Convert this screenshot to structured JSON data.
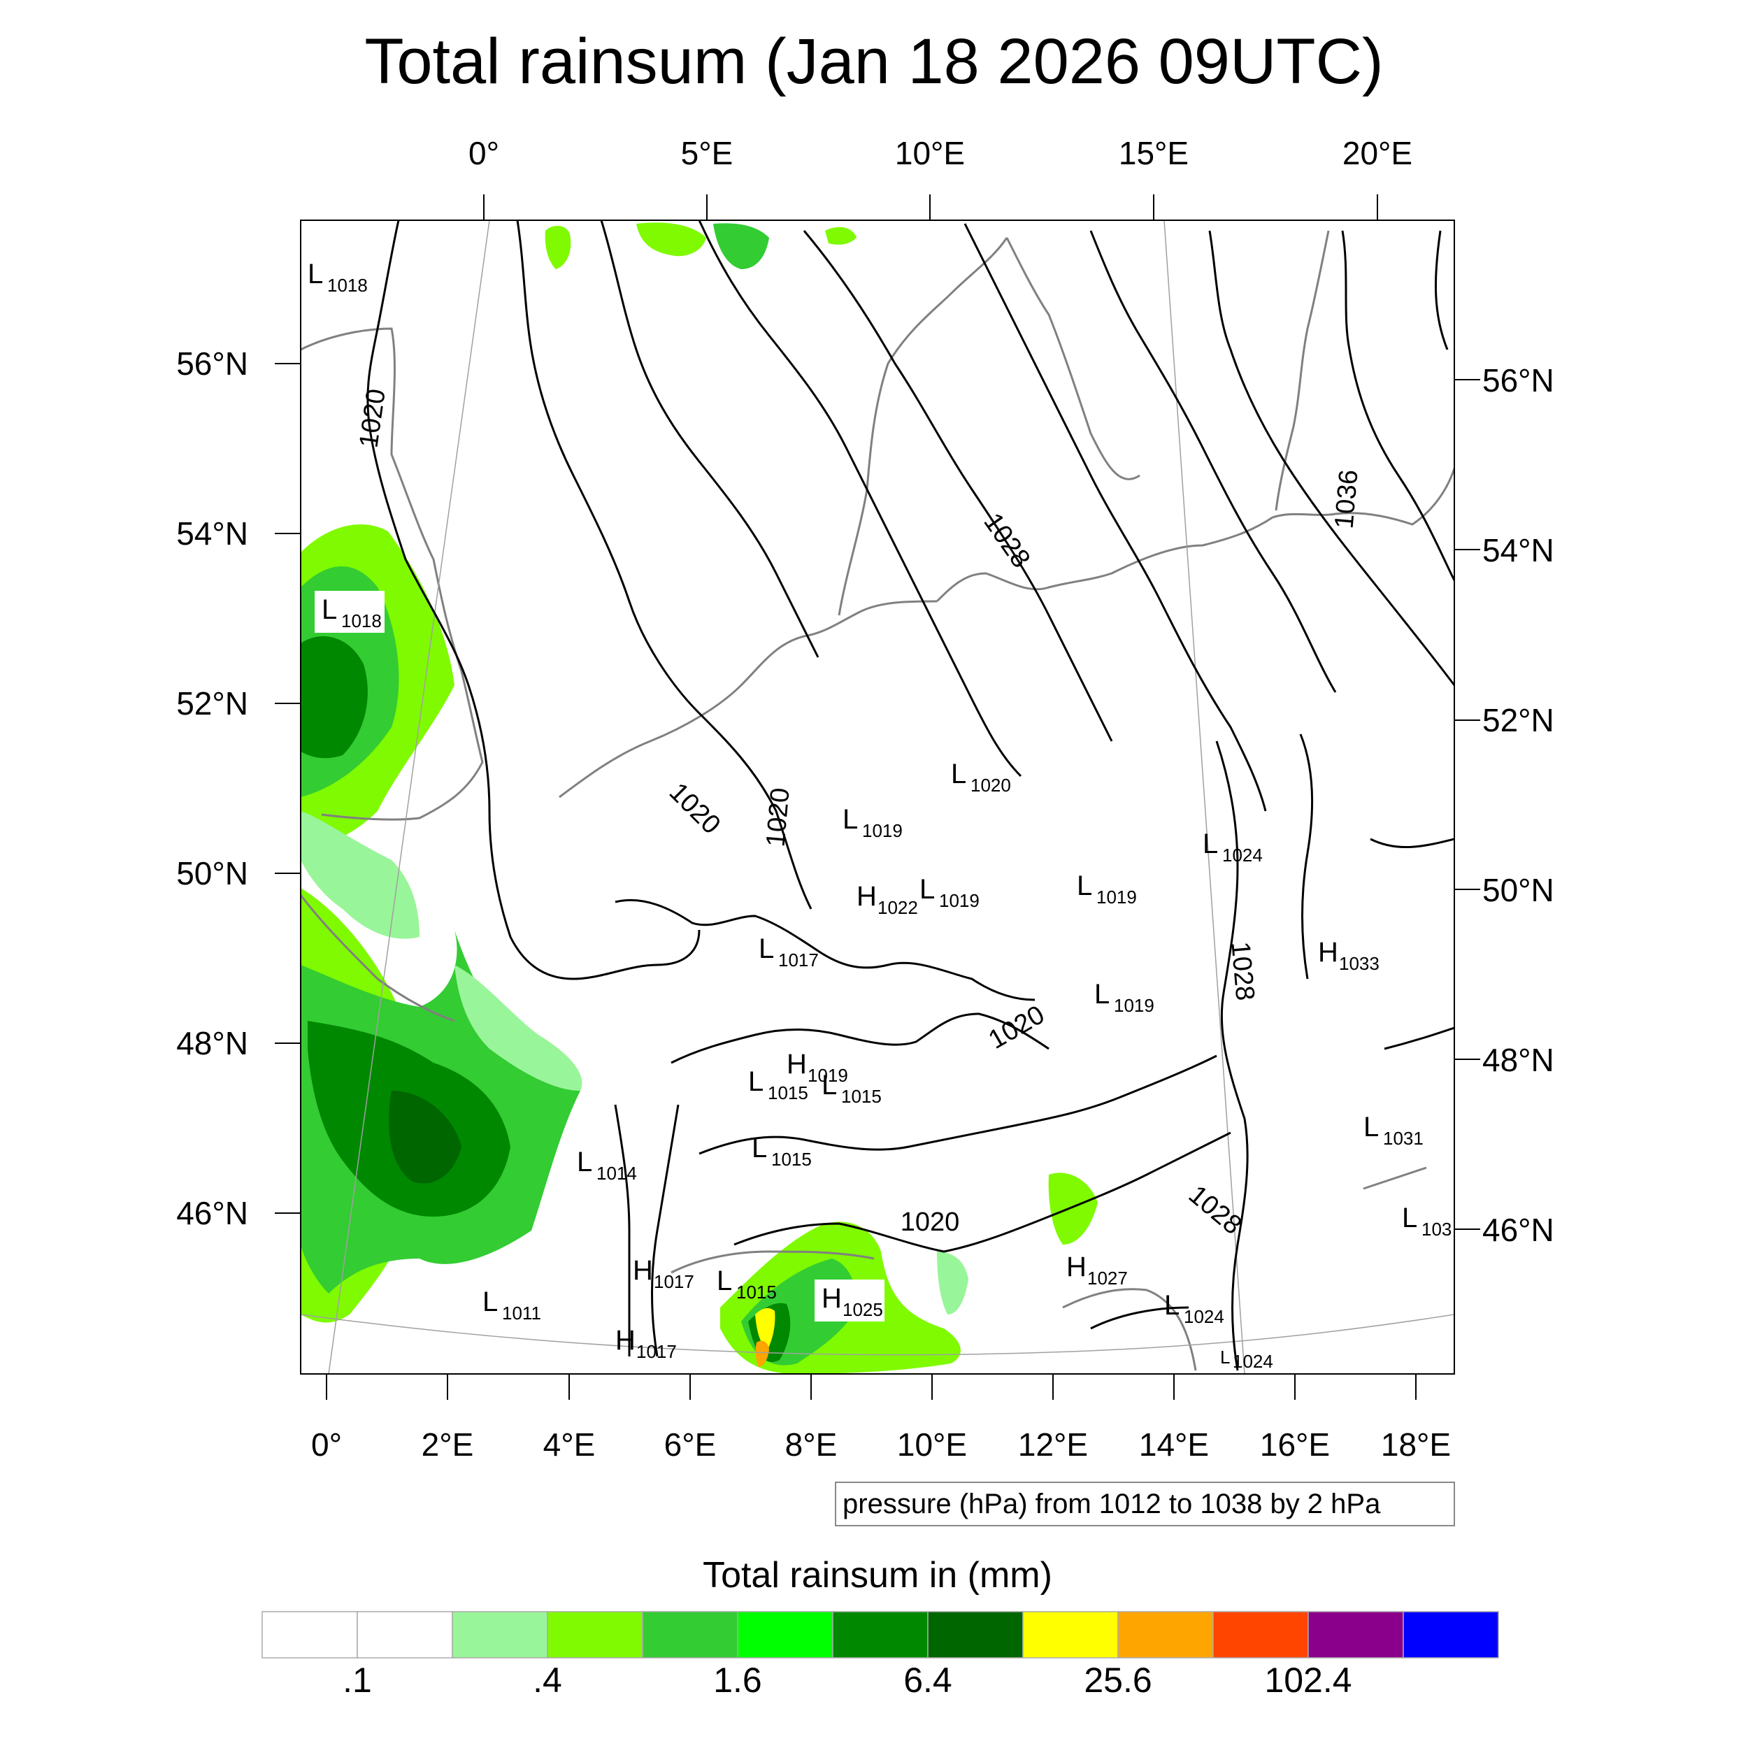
{
  "title": "Total rainsum (Jan 18 2026 09UTC)",
  "top_lon_labels": [
    "0°",
    "5°E",
    "10°E",
    "15°E",
    "20°E"
  ],
  "bottom_lon_labels": [
    "0°",
    "2°E",
    "4°E",
    "6°E",
    "8°E",
    "10°E",
    "12°E",
    "14°E",
    "16°E",
    "18°E"
  ],
  "left_lat_labels": [
    "56°N",
    "54°N",
    "52°N",
    "50°N",
    "48°N",
    "46°N"
  ],
  "right_lat_labels": [
    "56°N",
    "54°N",
    "52°N",
    "50°N",
    "48°N",
    "46°N"
  ],
  "contour_info": "pressure (hPa) from 1012 to 1038 by 2 hPa",
  "colorbar": {
    "title": "Total rainsum in (mm)",
    "colors": [
      "#ffffff",
      "#ffffff",
      "#99f599",
      "#7ffa00",
      "#33cc33",
      "#00ff00",
      "#008800",
      "#006600",
      "#ffff00",
      "#ffa500",
      "#ff4500",
      "#8b008b",
      "#0000ff"
    ],
    "tick_labels": [
      ".1",
      ".4",
      "1.6",
      "6.4",
      "25.6",
      "102.4"
    ]
  },
  "isobar_labels": [
    "1020",
    "1020",
    "1020",
    "1020",
    "1020",
    "1028",
    "1028",
    "1028",
    "1036"
  ],
  "pressure_centers": [
    {
      "type": "L",
      "value": "1018"
    },
    {
      "type": "L",
      "value": "1018"
    },
    {
      "type": "L",
      "value": "1020"
    },
    {
      "type": "L",
      "value": "1019"
    },
    {
      "type": "L",
      "value": "1024"
    },
    {
      "type": "H",
      "value": "1022"
    },
    {
      "type": "L",
      "value": "1019"
    },
    {
      "type": "L",
      "value": "1019"
    },
    {
      "type": "L",
      "value": "1017"
    },
    {
      "type": "H",
      "value": "1033"
    },
    {
      "type": "L",
      "value": "1019"
    },
    {
      "type": "H",
      "value": "1019"
    },
    {
      "type": "L",
      "value": "1015"
    },
    {
      "type": "L",
      "value": "1015"
    },
    {
      "type": "L",
      "value": "1031"
    },
    {
      "type": "L",
      "value": "1014"
    },
    {
      "type": "L",
      "value": "1015"
    },
    {
      "type": "L",
      "value": "103"
    },
    {
      "type": "H",
      "value": "1017"
    },
    {
      "type": "L",
      "value": "1015"
    },
    {
      "type": "H",
      "value": "1025"
    },
    {
      "type": "H",
      "value": "1027"
    },
    {
      "type": "L",
      "value": "1011"
    },
    {
      "type": "L",
      "value": "1024"
    },
    {
      "type": "H",
      "value": "1017"
    },
    {
      "type": "L",
      "value": "1024"
    }
  ]
}
